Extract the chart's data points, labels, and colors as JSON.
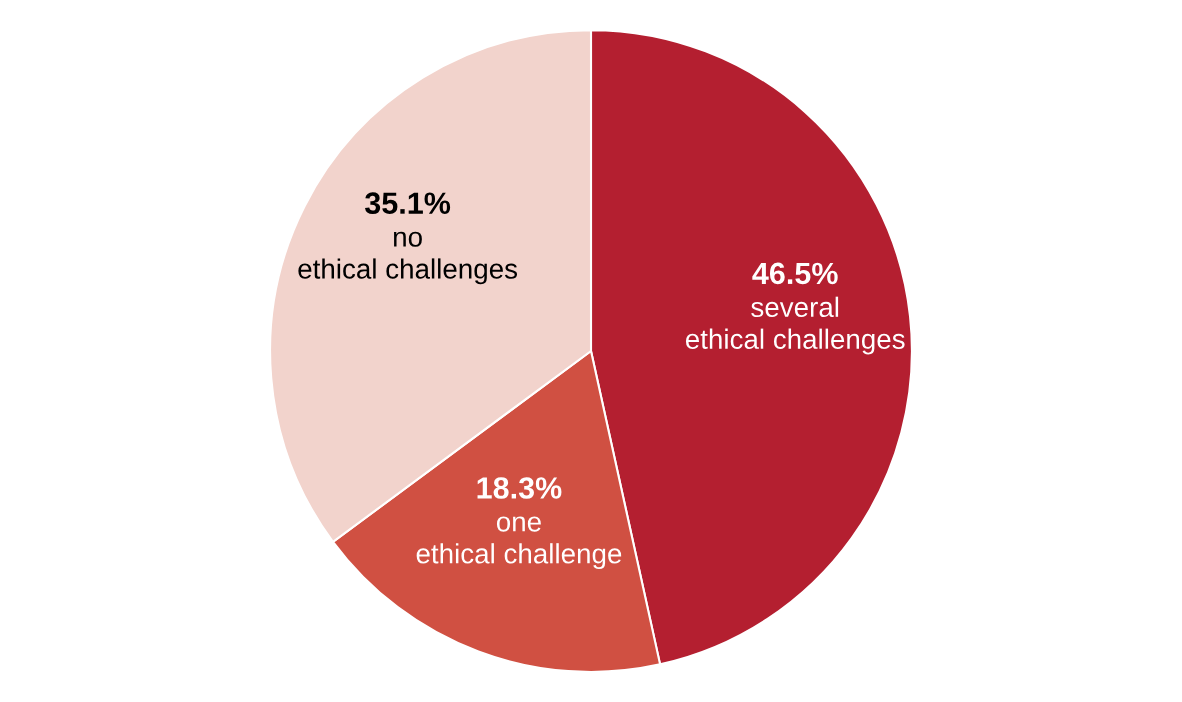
{
  "chart_data": {
    "type": "pie",
    "categories": [
      "several\nethical challenges",
      "one\nethical challenge",
      "no\nethical challenges"
    ],
    "values": [
      46.5,
      18.3,
      35.1
    ],
    "colors": [
      "#b41f30",
      "#d05042",
      "#f2d3cc"
    ],
    "value_labels": [
      "46.5%",
      "18.3%",
      "35.1%"
    ],
    "legend": false
  }
}
